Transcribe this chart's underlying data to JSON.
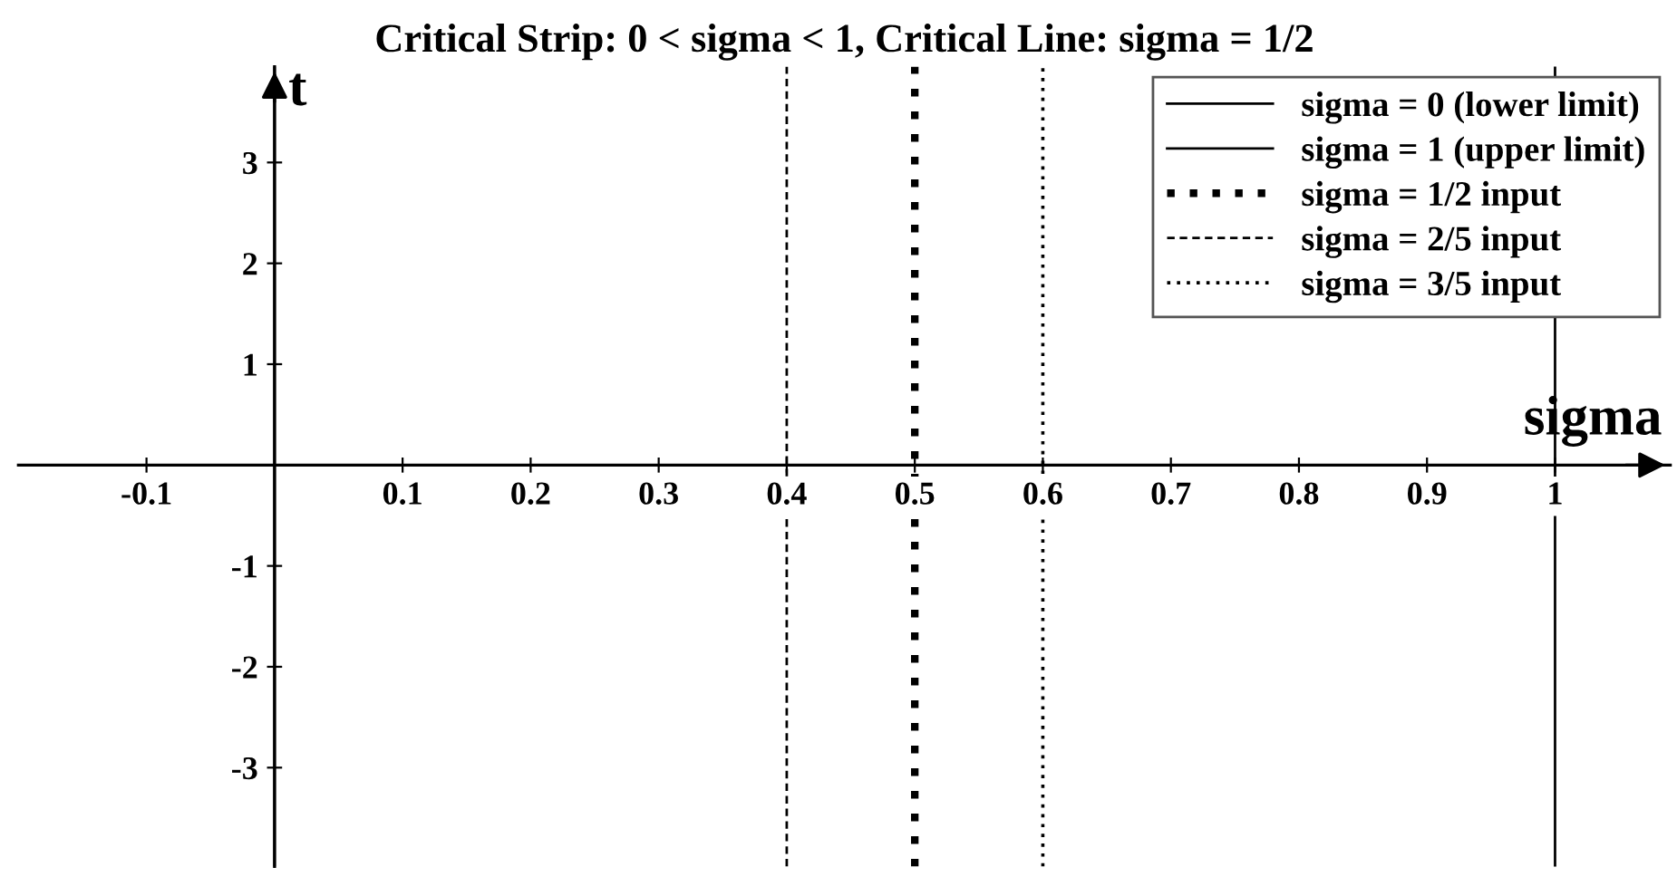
{
  "chart_data": {
    "type": "line",
    "title": "Critical Strip: 0 < sigma < 1, Critical Line: sigma = 1/2",
    "xlabel": "sigma",
    "ylabel": "t",
    "xlim": [
      -0.2,
      1.09
    ],
    "ylim": [
      -3.98,
      3.95
    ],
    "xticks": [
      -0.1,
      0.1,
      0.2,
      0.3,
      0.4,
      0.5,
      0.6,
      0.7,
      0.8,
      0.9,
      1
    ],
    "yticks": [
      -3,
      -2,
      -1,
      1,
      2,
      3
    ],
    "grid": false,
    "legend": "top right",
    "series": [
      {
        "name": "sigma = 0 (lower limit)",
        "color": "#000000",
        "x": [
          0,
          0
        ],
        "values": [
          -3.98,
          3.95
        ],
        "line_style": "solid"
      },
      {
        "name": "sigma = 1 (upper limit)",
        "color": "#000000",
        "x": [
          1,
          1
        ],
        "values": [
          -3.98,
          3.95
        ],
        "line_style": "solid"
      },
      {
        "name": "sigma = 1/2 input",
        "color": "#000000",
        "x": [
          0.5,
          0.5
        ],
        "values": [
          -3.98,
          3.95
        ],
        "line_style": "dotted"
      },
      {
        "name": "sigma = 2/5 input",
        "color": "#000000",
        "x": [
          0.4,
          0.4
        ],
        "values": [
          -3.98,
          3.95
        ],
        "line_style": "dashed"
      },
      {
        "name": "sigma = 3/5 input",
        "color": "#000000",
        "x": [
          0.6,
          0.6
        ],
        "values": [
          -3.98,
          3.95
        ],
        "line_style": "dotted"
      }
    ]
  }
}
